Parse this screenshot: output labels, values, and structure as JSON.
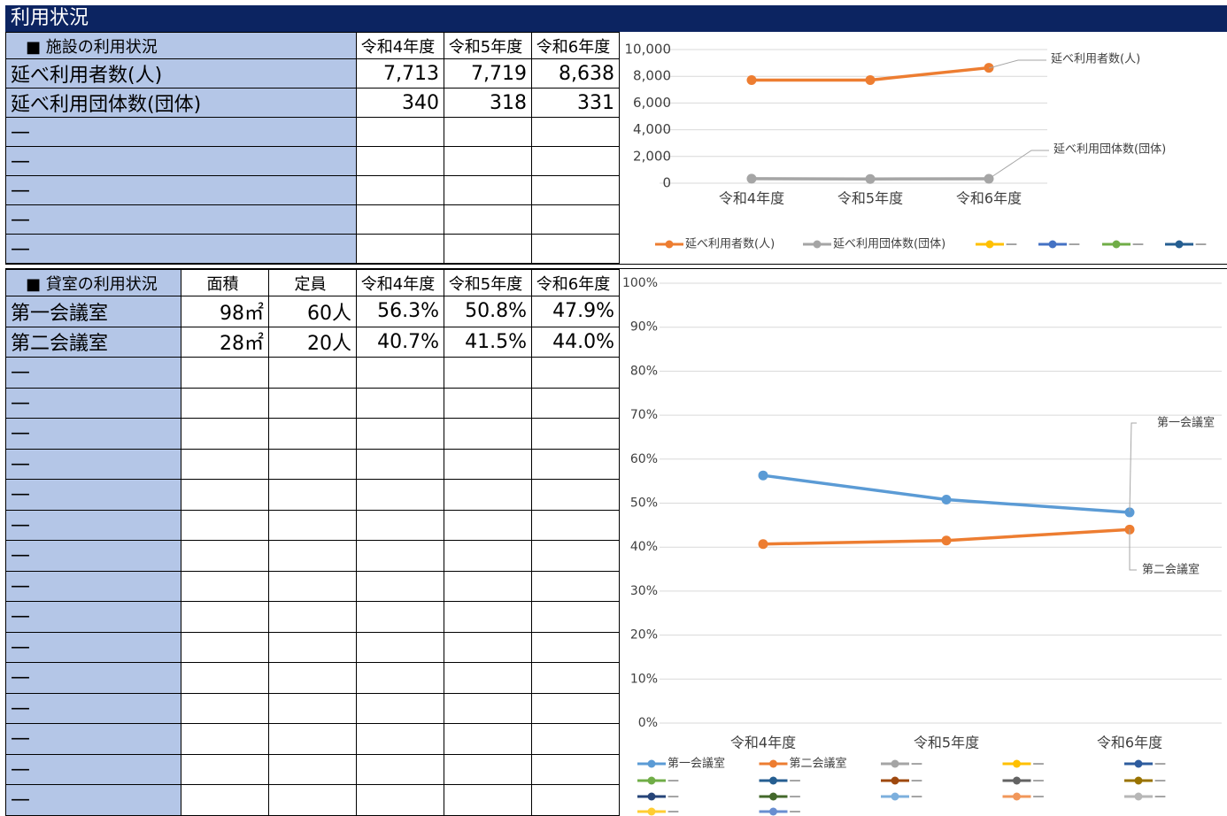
{
  "title": "利用状況",
  "table1": {
    "header": [
      "■ 施設の利用状況",
      "令和4年度",
      "令和5年度",
      "令和6年度"
    ],
    "rows": [
      [
        "延べ利用者数(人)",
        "7,713",
        "7,719",
        "8,638"
      ],
      [
        "延べ利用団体数(団体)",
        "340",
        "318",
        "331"
      ],
      [
        "—"
      ],
      [
        "—"
      ],
      [
        "—"
      ],
      [
        "—"
      ],
      [
        "—"
      ]
    ]
  },
  "table2": {
    "header": [
      "■ 貸室の利用状況",
      "面積",
      "定員",
      "令和4年度",
      "令和5年度",
      "令和6年度"
    ],
    "rows": [
      [
        "第一会議室",
        "98㎡",
        "60人",
        "56.3%",
        "50.8%",
        "47.9%"
      ],
      [
        "第二会議室",
        "28㎡",
        "20人",
        "40.7%",
        "41.5%",
        "44.0%"
      ],
      [
        "—"
      ],
      [
        "—"
      ],
      [
        "—"
      ],
      [
        "—"
      ],
      [
        "—"
      ],
      [
        "—"
      ],
      [
        "—"
      ],
      [
        "—"
      ],
      [
        "—"
      ],
      [
        "—"
      ],
      [
        "—"
      ],
      [
        "—"
      ],
      [
        "—"
      ],
      [
        "—"
      ],
      [
        "—"
      ]
    ]
  },
  "chart_data": [
    {
      "type": "line",
      "categories": [
        "令和4年度",
        "令和5年度",
        "令和6年度"
      ],
      "series": [
        {
          "name": "延べ利用者数(人)",
          "color": "#ed7d31",
          "values": [
            7713,
            7719,
            8638
          ]
        },
        {
          "name": "延べ利用団体数(団体)",
          "color": "#a5a5a5",
          "values": [
            340,
            318,
            331
          ]
        },
        {
          "name": "—",
          "color": "#ffc000",
          "values": [
            null,
            null,
            null
          ]
        },
        {
          "name": "—",
          "color": "#4472c4",
          "values": [
            null,
            null,
            null
          ]
        },
        {
          "name": "—",
          "color": "#70ad47",
          "values": [
            null,
            null,
            null
          ]
        },
        {
          "name": "—",
          "color": "#255e91",
          "values": [
            null,
            null,
            null
          ]
        }
      ],
      "ylim": [
        0,
        10000
      ],
      "yticks": [
        0,
        {
          "value": 2000,
          "label": "2,000"
        },
        {
          "value": 4000,
          "label": "4,000"
        },
        {
          "value": 6000,
          "label": "6,000"
        },
        {
          "value": 8000,
          "label": "8,000"
        },
        {
          "value": 10000,
          "label": "10,000"
        }
      ],
      "grid": true,
      "legend": "bottom"
    },
    {
      "type": "line",
      "categories": [
        "令和4年度",
        "令和5年度",
        "令和6年度"
      ],
      "series": [
        {
          "name": "第一会議室",
          "color": "#5b9bd5",
          "values": [
            56.3,
            50.8,
            47.9
          ]
        },
        {
          "name": "第二会議室",
          "color": "#ed7d31",
          "values": [
            40.7,
            41.5,
            44.0
          ]
        },
        {
          "name": "—",
          "color": "#a5a5a5",
          "values": [
            null,
            null,
            null
          ]
        },
        {
          "name": "—",
          "color": "#ffc000",
          "values": [
            null,
            null,
            null
          ]
        },
        {
          "name": "—",
          "color": "#2e5c9e",
          "values": [
            null,
            null,
            null
          ]
        },
        {
          "name": "—",
          "color": "#70ad47",
          "values": [
            null,
            null,
            null
          ]
        },
        {
          "name": "—",
          "color": "#255e91",
          "values": [
            null,
            null,
            null
          ]
        },
        {
          "name": "—",
          "color": "#9e480e",
          "values": [
            null,
            null,
            null
          ]
        },
        {
          "name": "—",
          "color": "#636363",
          "values": [
            null,
            null,
            null
          ]
        },
        {
          "name": "—",
          "color": "#997300",
          "values": [
            null,
            null,
            null
          ]
        },
        {
          "name": "—",
          "color": "#264478",
          "values": [
            null,
            null,
            null
          ]
        },
        {
          "name": "—",
          "color": "#43682b",
          "values": [
            null,
            null,
            null
          ]
        },
        {
          "name": "—",
          "color": "#7cafdd",
          "values": [
            null,
            null,
            null
          ]
        },
        {
          "name": "—",
          "color": "#f1975a",
          "values": [
            null,
            null,
            null
          ]
        },
        {
          "name": "—",
          "color": "#b7b7b7",
          "values": [
            null,
            null,
            null
          ]
        },
        {
          "name": "—",
          "color": "#ffcd33",
          "values": [
            null,
            null,
            null
          ]
        },
        {
          "name": "—",
          "color": "#698ed0",
          "values": [
            null,
            null,
            null
          ]
        }
      ],
      "ylim": [
        0,
        100
      ],
      "yticks": [
        {
          "value": 0,
          "label": "0%"
        },
        {
          "value": 10,
          "label": "10%"
        },
        {
          "value": 20,
          "label": "20%"
        },
        {
          "value": 30,
          "label": "30%"
        },
        {
          "value": 40,
          "label": "40%"
        },
        {
          "value": 50,
          "label": "50%"
        },
        {
          "value": 60,
          "label": "60%"
        },
        {
          "value": 70,
          "label": "70%"
        },
        {
          "value": 80,
          "label": "80%"
        },
        {
          "value": 90,
          "label": "90%"
        },
        {
          "value": 100,
          "label": "100%"
        }
      ],
      "grid": true,
      "legend": "bottom"
    }
  ]
}
